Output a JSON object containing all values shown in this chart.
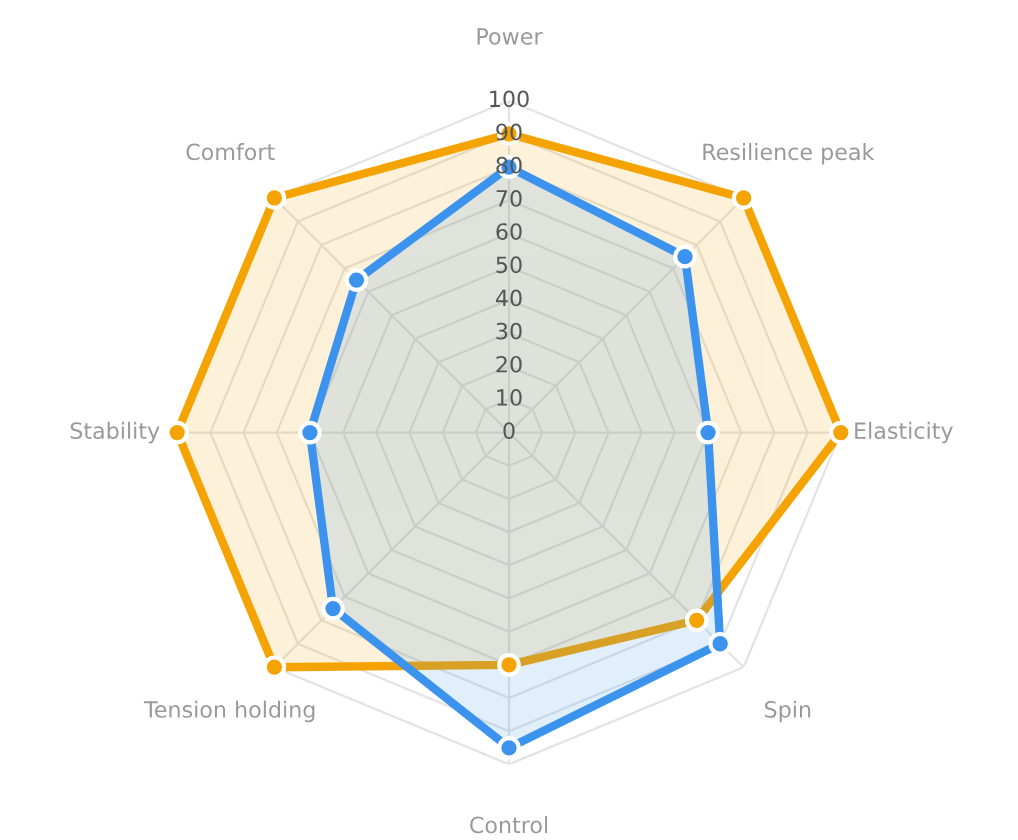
{
  "chart_data": {
    "type": "radar",
    "categories": [
      "Power",
      "Resilience peak",
      "Elasticity",
      "Spin",
      "Control",
      "Tension holding",
      "Stability",
      "Comfort"
    ],
    "series": [
      {
        "color": "#f5a300",
        "values": [
          90,
          100,
          100,
          80,
          70,
          100,
          100,
          100
        ]
      },
      {
        "color": "#3b93ee",
        "values": [
          80,
          75,
          60,
          90,
          95,
          75,
          60,
          65
        ]
      }
    ],
    "ylim": [
      0,
      100
    ],
    "yticks": [
      0,
      10,
      20,
      30,
      40,
      50,
      60,
      70,
      80,
      90,
      100
    ],
    "grid": true,
    "marker": "circle",
    "line_style": "solid"
  }
}
